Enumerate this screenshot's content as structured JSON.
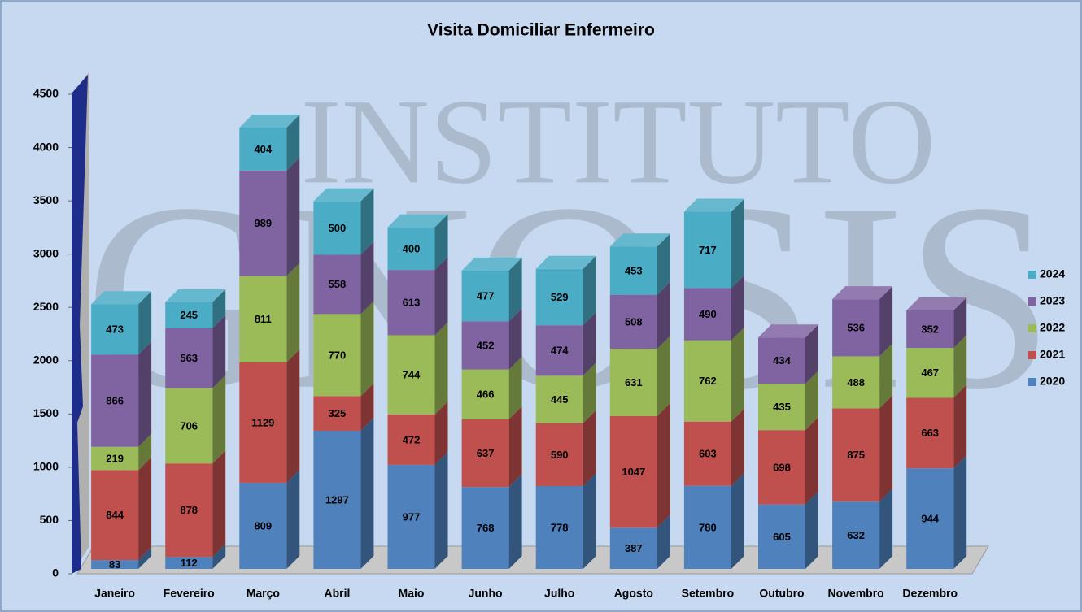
{
  "chart_data": {
    "type": "bar3d_stacked",
    "title": "Visita Domiciliar Enfermeiro",
    "watermark": [
      "INSTITUTO",
      "GNOSIS"
    ],
    "categories": [
      "Janeiro",
      "Fevereiro",
      "Março",
      "Abril",
      "Maio",
      "Junho",
      "Julho",
      "Agosto",
      "Setembro",
      "Outubro",
      "Novembro",
      "Dezembro"
    ],
    "series": [
      {
        "name": "2020",
        "color": "#4f81bd",
        "values": [
          83,
          112,
          809,
          1297,
          977,
          768,
          778,
          387,
          780,
          605,
          632,
          944
        ]
      },
      {
        "name": "2021",
        "color": "#c0504d",
        "values": [
          844,
          878,
          1129,
          325,
          472,
          637,
          590,
          1047,
          603,
          698,
          875,
          663
        ]
      },
      {
        "name": "2022",
        "color": "#9bbb59",
        "values": [
          219,
          706,
          811,
          770,
          744,
          466,
          445,
          631,
          762,
          435,
          488,
          467
        ]
      },
      {
        "name": "2023",
        "color": "#8064a2",
        "values": [
          866,
          563,
          989,
          558,
          613,
          452,
          474,
          508,
          490,
          434,
          536,
          352
        ]
      },
      {
        "name": "2024",
        "color": "#4bacc6",
        "values": [
          473,
          245,
          404,
          500,
          400,
          477,
          529,
          453,
          717,
          null,
          null,
          null
        ]
      }
    ],
    "ylim": [
      0,
      4500
    ],
    "yticks": [
      0,
      500,
      1000,
      1500,
      2000,
      2500,
      3000,
      3500,
      4000,
      4500
    ],
    "legend": "right"
  }
}
